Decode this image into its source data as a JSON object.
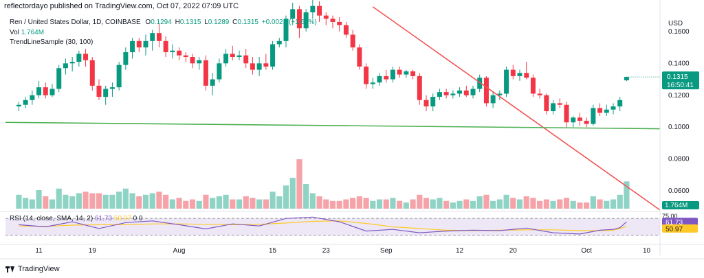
{
  "header": {
    "published": "reflectordayo published on TradingView.com, Oct 07, 2022 07:09 UTC"
  },
  "legend": {
    "symbol": "Ren / United States Dollar, 1D, COINBASE",
    "open_label": "O",
    "open": "0.1294",
    "high_label": "H",
    "high": "0.1315",
    "low_label": "L",
    "low": "0.1289",
    "close_label": "C",
    "close": "0.1315",
    "change": "+0.0021 (+1.62%)",
    "vol_label": "Vol",
    "vol": "1.764M",
    "indicator": "TrendLineSample (30, 100)"
  },
  "rsi": {
    "label": "RSI (14, close, SMA, 14, 2)",
    "rsi_value": "61.73",
    "sma_value": "50.97",
    "extra": "0 0",
    "axis_top": "75.00",
    "badge_rsi": "61.73",
    "badge_sma": "50.97"
  },
  "price_axis": {
    "currency": "USD",
    "ticks": [
      "0.1600",
      "0.1400",
      "0.1200",
      "0.1000",
      "0.0800",
      "0.0600"
    ],
    "last_price": "0.1315",
    "countdown": "16:50:41",
    "volume_badge": "1.764M"
  },
  "time_axis": {
    "ticks": [
      "11",
      "19",
      "Aug",
      "15",
      "23",
      "Sep",
      "12",
      "20",
      "Oct",
      "10"
    ]
  },
  "footer": {
    "brand": "TradingView"
  },
  "colors": {
    "up": "#089981",
    "down": "#f23645",
    "up_volume": "#8fd3c5",
    "down_volume": "#f5a3a8",
    "trendline_down": "#f25454",
    "support_line": "#4caf50",
    "rsi_line": "#7e57c2",
    "rsi_sma": "#ffca28",
    "rsi_band": "#ede7f6"
  },
  "chart_data": {
    "type": "candlestick",
    "symbol": "Ren / United States Dollar",
    "interval": "1D",
    "exchange": "COINBASE",
    "ylim": [
      0.048,
      0.172
    ],
    "x_range": [
      "2022-07-06",
      "2022-10-12"
    ],
    "candles": [
      {
        "d": "2022-07-08",
        "o": 0.113,
        "h": 0.116,
        "l": 0.11,
        "c": 0.114,
        "v": 0.9
      },
      {
        "d": "2022-07-09",
        "o": 0.114,
        "h": 0.119,
        "l": 0.112,
        "c": 0.117,
        "v": 0.7
      },
      {
        "d": "2022-07-10",
        "o": 0.117,
        "h": 0.123,
        "l": 0.114,
        "c": 0.12,
        "v": 0.6
      },
      {
        "d": "2022-07-11",
        "o": 0.12,
        "h": 0.129,
        "l": 0.118,
        "c": 0.125,
        "v": 1.2
      },
      {
        "d": "2022-07-12",
        "o": 0.125,
        "h": 0.128,
        "l": 0.118,
        "c": 0.12,
        "v": 0.8
      },
      {
        "d": "2022-07-13",
        "o": 0.12,
        "h": 0.127,
        "l": 0.119,
        "c": 0.124,
        "v": 0.6
      },
      {
        "d": "2022-07-14",
        "o": 0.124,
        "h": 0.139,
        "l": 0.122,
        "c": 0.137,
        "v": 1.3
      },
      {
        "d": "2022-07-15",
        "o": 0.137,
        "h": 0.143,
        "l": 0.133,
        "c": 0.14,
        "v": 0.9
      },
      {
        "d": "2022-07-16",
        "o": 0.14,
        "h": 0.144,
        "l": 0.135,
        "c": 0.141,
        "v": 0.8
      },
      {
        "d": "2022-07-17",
        "o": 0.141,
        "h": 0.148,
        "l": 0.138,
        "c": 0.146,
        "v": 1.0
      },
      {
        "d": "2022-07-18",
        "o": 0.146,
        "h": 0.149,
        "l": 0.138,
        "c": 0.142,
        "v": 1.1
      },
      {
        "d": "2022-07-19",
        "o": 0.142,
        "h": 0.144,
        "l": 0.123,
        "c": 0.126,
        "v": 1.0
      },
      {
        "d": "2022-07-20",
        "o": 0.126,
        "h": 0.13,
        "l": 0.117,
        "c": 0.119,
        "v": 1.0
      },
      {
        "d": "2022-07-21",
        "o": 0.119,
        "h": 0.126,
        "l": 0.114,
        "c": 0.124,
        "v": 0.9
      },
      {
        "d": "2022-07-22",
        "o": 0.124,
        "h": 0.128,
        "l": 0.119,
        "c": 0.125,
        "v": 0.9
      },
      {
        "d": "2022-07-23",
        "o": 0.125,
        "h": 0.141,
        "l": 0.123,
        "c": 0.139,
        "v": 1.1
      },
      {
        "d": "2022-07-24",
        "o": 0.139,
        "h": 0.15,
        "l": 0.136,
        "c": 0.147,
        "v": 1.3
      },
      {
        "d": "2022-07-25",
        "o": 0.147,
        "h": 0.156,
        "l": 0.143,
        "c": 0.154,
        "v": 1.0
      },
      {
        "d": "2022-07-26",
        "o": 0.154,
        "h": 0.156,
        "l": 0.147,
        "c": 0.15,
        "v": 0.8
      },
      {
        "d": "2022-07-27",
        "o": 0.15,
        "h": 0.158,
        "l": 0.145,
        "c": 0.154,
        "v": 0.9
      },
      {
        "d": "2022-07-28",
        "o": 0.154,
        "h": 0.161,
        "l": 0.148,
        "c": 0.159,
        "v": 1.0
      },
      {
        "d": "2022-07-29",
        "o": 0.159,
        "h": 0.165,
        "l": 0.15,
        "c": 0.154,
        "v": 1.1
      },
      {
        "d": "2022-07-30",
        "o": 0.154,
        "h": 0.157,
        "l": 0.144,
        "c": 0.147,
        "v": 0.9
      },
      {
        "d": "2022-07-31",
        "o": 0.147,
        "h": 0.152,
        "l": 0.143,
        "c": 0.148,
        "v": 0.6
      },
      {
        "d": "2022-08-01",
        "o": 0.148,
        "h": 0.15,
        "l": 0.142,
        "c": 0.145,
        "v": 0.7
      },
      {
        "d": "2022-08-02",
        "o": 0.145,
        "h": 0.147,
        "l": 0.141,
        "c": 0.144,
        "v": 0.5
      },
      {
        "d": "2022-08-03",
        "o": 0.144,
        "h": 0.146,
        "l": 0.137,
        "c": 0.14,
        "v": 0.6
      },
      {
        "d": "2022-08-04",
        "o": 0.14,
        "h": 0.144,
        "l": 0.136,
        "c": 0.142,
        "v": 0.5
      },
      {
        "d": "2022-08-05",
        "o": 0.142,
        "h": 0.145,
        "l": 0.123,
        "c": 0.126,
        "v": 0.9
      },
      {
        "d": "2022-08-06",
        "o": 0.126,
        "h": 0.134,
        "l": 0.12,
        "c": 0.13,
        "v": 0.7
      },
      {
        "d": "2022-08-07",
        "o": 0.13,
        "h": 0.143,
        "l": 0.128,
        "c": 0.14,
        "v": 0.8
      },
      {
        "d": "2022-08-08",
        "o": 0.14,
        "h": 0.149,
        "l": 0.138,
        "c": 0.146,
        "v": 0.9
      },
      {
        "d": "2022-08-09",
        "o": 0.146,
        "h": 0.151,
        "l": 0.142,
        "c": 0.144,
        "v": 0.6
      },
      {
        "d": "2022-08-10",
        "o": 0.144,
        "h": 0.148,
        "l": 0.142,
        "c": 0.145,
        "v": 0.6
      },
      {
        "d": "2022-08-11",
        "o": 0.145,
        "h": 0.149,
        "l": 0.137,
        "c": 0.14,
        "v": 0.8
      },
      {
        "d": "2022-08-12",
        "o": 0.14,
        "h": 0.144,
        "l": 0.133,
        "c": 0.136,
        "v": 0.7
      },
      {
        "d": "2022-08-13",
        "o": 0.136,
        "h": 0.144,
        "l": 0.132,
        "c": 0.14,
        "v": 0.6
      },
      {
        "d": "2022-08-14",
        "o": 0.14,
        "h": 0.146,
        "l": 0.136,
        "c": 0.138,
        "v": 0.6
      },
      {
        "d": "2022-08-15",
        "o": 0.138,
        "h": 0.154,
        "l": 0.136,
        "c": 0.152,
        "v": 1.1
      },
      {
        "d": "2022-08-16",
        "o": 0.152,
        "h": 0.156,
        "l": 0.15,
        "c": 0.154,
        "v": 0.8
      },
      {
        "d": "2022-08-17",
        "o": 0.154,
        "h": 0.17,
        "l": 0.15,
        "c": 0.168,
        "v": 1.5
      },
      {
        "d": "2022-08-18",
        "o": 0.168,
        "h": 0.178,
        "l": 0.164,
        "c": 0.174,
        "v": 2.0
      },
      {
        "d": "2022-08-19",
        "o": 0.174,
        "h": 0.176,
        "l": 0.156,
        "c": 0.162,
        "v": 3.2
      },
      {
        "d": "2022-08-20",
        "o": 0.162,
        "h": 0.174,
        "l": 0.16,
        "c": 0.172,
        "v": 1.6
      },
      {
        "d": "2022-08-21",
        "o": 0.172,
        "h": 0.18,
        "l": 0.168,
        "c": 0.176,
        "v": 1.0
      },
      {
        "d": "2022-08-22",
        "o": 0.176,
        "h": 0.179,
        "l": 0.166,
        "c": 0.17,
        "v": 0.8
      },
      {
        "d": "2022-08-23",
        "o": 0.17,
        "h": 0.172,
        "l": 0.164,
        "c": 0.168,
        "v": 0.6
      },
      {
        "d": "2022-08-24",
        "o": 0.168,
        "h": 0.17,
        "l": 0.162,
        "c": 0.166,
        "v": 0.5
      },
      {
        "d": "2022-08-25",
        "o": 0.166,
        "h": 0.169,
        "l": 0.16,
        "c": 0.164,
        "v": 0.5
      },
      {
        "d": "2022-08-26",
        "o": 0.164,
        "h": 0.166,
        "l": 0.156,
        "c": 0.158,
        "v": 0.6
      },
      {
        "d": "2022-08-27",
        "o": 0.158,
        "h": 0.161,
        "l": 0.148,
        "c": 0.15,
        "v": 0.7
      },
      {
        "d": "2022-08-28",
        "o": 0.15,
        "h": 0.152,
        "l": 0.136,
        "c": 0.138,
        "v": 0.8
      },
      {
        "d": "2022-08-29",
        "o": 0.138,
        "h": 0.14,
        "l": 0.124,
        "c": 0.127,
        "v": 0.7
      },
      {
        "d": "2022-08-30",
        "o": 0.127,
        "h": 0.131,
        "l": 0.124,
        "c": 0.128,
        "v": 0.5
      },
      {
        "d": "2022-08-31",
        "o": 0.128,
        "h": 0.134,
        "l": 0.126,
        "c": 0.132,
        "v": 0.6
      },
      {
        "d": "2022-09-01",
        "o": 0.132,
        "h": 0.136,
        "l": 0.128,
        "c": 0.13,
        "v": 0.6
      },
      {
        "d": "2022-09-02",
        "o": 0.13,
        "h": 0.138,
        "l": 0.128,
        "c": 0.136,
        "v": 0.7
      },
      {
        "d": "2022-09-03",
        "o": 0.136,
        "h": 0.138,
        "l": 0.131,
        "c": 0.133,
        "v": 0.5
      },
      {
        "d": "2022-09-04",
        "o": 0.133,
        "h": 0.136,
        "l": 0.131,
        "c": 0.135,
        "v": 0.4
      },
      {
        "d": "2022-09-05",
        "o": 0.135,
        "h": 0.136,
        "l": 0.13,
        "c": 0.132,
        "v": 0.6
      },
      {
        "d": "2022-09-06",
        "o": 0.132,
        "h": 0.134,
        "l": 0.114,
        "c": 0.117,
        "v": 0.9
      },
      {
        "d": "2022-09-07",
        "o": 0.117,
        "h": 0.12,
        "l": 0.11,
        "c": 0.113,
        "v": 0.7
      },
      {
        "d": "2022-09-08",
        "o": 0.113,
        "h": 0.121,
        "l": 0.11,
        "c": 0.119,
        "v": 0.6
      },
      {
        "d": "2022-09-09",
        "o": 0.119,
        "h": 0.124,
        "l": 0.117,
        "c": 0.122,
        "v": 0.7
      },
      {
        "d": "2022-09-10",
        "o": 0.122,
        "h": 0.124,
        "l": 0.118,
        "c": 0.12,
        "v": 0.5
      },
      {
        "d": "2022-09-11",
        "o": 0.12,
        "h": 0.123,
        "l": 0.118,
        "c": 0.121,
        "v": 0.4
      },
      {
        "d": "2022-09-12",
        "o": 0.121,
        "h": 0.125,
        "l": 0.119,
        "c": 0.123,
        "v": 0.5
      },
      {
        "d": "2022-09-13",
        "o": 0.123,
        "h": 0.126,
        "l": 0.119,
        "c": 0.12,
        "v": 0.6
      },
      {
        "d": "2022-09-14",
        "o": 0.12,
        "h": 0.126,
        "l": 0.118,
        "c": 0.124,
        "v": 0.5
      },
      {
        "d": "2022-09-15",
        "o": 0.124,
        "h": 0.133,
        "l": 0.122,
        "c": 0.131,
        "v": 0.8
      },
      {
        "d": "2022-09-16",
        "o": 0.131,
        "h": 0.132,
        "l": 0.113,
        "c": 0.115,
        "v": 0.9
      },
      {
        "d": "2022-09-17",
        "o": 0.115,
        "h": 0.122,
        "l": 0.112,
        "c": 0.12,
        "v": 0.5
      },
      {
        "d": "2022-09-18",
        "o": 0.12,
        "h": 0.123,
        "l": 0.117,
        "c": 0.121,
        "v": 0.6
      },
      {
        "d": "2022-09-19",
        "o": 0.121,
        "h": 0.138,
        "l": 0.119,
        "c": 0.136,
        "v": 0.9
      },
      {
        "d": "2022-09-20",
        "o": 0.136,
        "h": 0.139,
        "l": 0.13,
        "c": 0.132,
        "v": 0.7
      },
      {
        "d": "2022-09-21",
        "o": 0.132,
        "h": 0.136,
        "l": 0.129,
        "c": 0.134,
        "v": 0.6
      },
      {
        "d": "2022-09-22",
        "o": 0.134,
        "h": 0.141,
        "l": 0.13,
        "c": 0.131,
        "v": 0.8
      },
      {
        "d": "2022-09-23",
        "o": 0.131,
        "h": 0.133,
        "l": 0.119,
        "c": 0.121,
        "v": 0.7
      },
      {
        "d": "2022-09-24",
        "o": 0.121,
        "h": 0.124,
        "l": 0.118,
        "c": 0.12,
        "v": 0.5
      },
      {
        "d": "2022-09-25",
        "o": 0.12,
        "h": 0.121,
        "l": 0.108,
        "c": 0.11,
        "v": 0.6
      },
      {
        "d": "2022-09-26",
        "o": 0.11,
        "h": 0.117,
        "l": 0.108,
        "c": 0.115,
        "v": 0.5
      },
      {
        "d": "2022-09-27",
        "o": 0.115,
        "h": 0.118,
        "l": 0.112,
        "c": 0.114,
        "v": 0.6
      },
      {
        "d": "2022-09-28",
        "o": 0.114,
        "h": 0.116,
        "l": 0.1,
        "c": 0.103,
        "v": 0.7
      },
      {
        "d": "2022-09-29",
        "o": 0.103,
        "h": 0.107,
        "l": 0.1,
        "c": 0.106,
        "v": 0.5
      },
      {
        "d": "2022-09-30",
        "o": 0.106,
        "h": 0.109,
        "l": 0.101,
        "c": 0.104,
        "v": 0.4
      },
      {
        "d": "2022-10-01",
        "o": 0.104,
        "h": 0.106,
        "l": 0.1,
        "c": 0.102,
        "v": 0.4
      },
      {
        "d": "2022-10-02",
        "o": 0.102,
        "h": 0.114,
        "l": 0.101,
        "c": 0.112,
        "v": 0.8
      },
      {
        "d": "2022-10-03",
        "o": 0.112,
        "h": 0.115,
        "l": 0.107,
        "c": 0.109,
        "v": 0.6
      },
      {
        "d": "2022-10-04",
        "o": 0.109,
        "h": 0.114,
        "l": 0.107,
        "c": 0.111,
        "v": 0.5
      },
      {
        "d": "2022-10-05",
        "o": 0.111,
        "h": 0.115,
        "l": 0.108,
        "c": 0.113,
        "v": 0.6
      },
      {
        "d": "2022-10-06",
        "o": 0.113,
        "h": 0.119,
        "l": 0.11,
        "c": 0.117,
        "v": 0.9
      },
      {
        "d": "2022-10-07",
        "o": 0.1294,
        "h": 0.1315,
        "l": 0.1289,
        "c": 0.1315,
        "v": 1.764
      }
    ],
    "trendlines": [
      {
        "name": "descending",
        "points": [
          [
            "2022-08-30",
            0.1755
          ],
          [
            "2022-10-12",
            0.048
          ]
        ]
      },
      {
        "name": "support",
        "points": [
          [
            "2022-07-06",
            0.103
          ],
          [
            "2022-10-12",
            0.099
          ]
        ]
      }
    ],
    "rsi": {
      "ylim": [
        15,
        80
      ],
      "levels": [
        70,
        30
      ],
      "values": [
        {
          "d": "2022-07-08",
          "rsi": 55,
          "sma": 52
        },
        {
          "d": "2022-07-12",
          "rsi": 50,
          "sma": 51
        },
        {
          "d": "2022-07-16",
          "rsi": 62,
          "sma": 54
        },
        {
          "d": "2022-07-20",
          "rsi": 46,
          "sma": 55
        },
        {
          "d": "2022-07-24",
          "rsi": 60,
          "sma": 55
        },
        {
          "d": "2022-07-28",
          "rsi": 64,
          "sma": 57
        },
        {
          "d": "2022-08-01",
          "rsi": 55,
          "sma": 57
        },
        {
          "d": "2022-08-05",
          "rsi": 45,
          "sma": 56
        },
        {
          "d": "2022-08-09",
          "rsi": 57,
          "sma": 55
        },
        {
          "d": "2022-08-13",
          "rsi": 52,
          "sma": 56
        },
        {
          "d": "2022-08-17",
          "rsi": 70,
          "sma": 59
        },
        {
          "d": "2022-08-21",
          "rsi": 73,
          "sma": 63
        },
        {
          "d": "2022-08-25",
          "rsi": 62,
          "sma": 64
        },
        {
          "d": "2022-08-29",
          "rsi": 40,
          "sma": 58
        },
        {
          "d": "2022-09-02",
          "rsi": 44,
          "sma": 50
        },
        {
          "d": "2022-09-06",
          "rsi": 36,
          "sma": 46
        },
        {
          "d": "2022-09-10",
          "rsi": 40,
          "sma": 42
        },
        {
          "d": "2022-09-14",
          "rsi": 42,
          "sma": 41
        },
        {
          "d": "2022-09-18",
          "rsi": 41,
          "sma": 42
        },
        {
          "d": "2022-09-22",
          "rsi": 47,
          "sma": 43
        },
        {
          "d": "2022-09-26",
          "rsi": 36,
          "sma": 43
        },
        {
          "d": "2022-09-30",
          "rsi": 33,
          "sma": 41
        },
        {
          "d": "2022-10-03",
          "rsi": 42,
          "sma": 41
        },
        {
          "d": "2022-10-05",
          "rsi": 44,
          "sma": 42
        },
        {
          "d": "2022-10-06",
          "rsi": 48,
          "sma": 46
        },
        {
          "d": "2022-10-07",
          "rsi": 61.73,
          "sma": 50.97
        }
      ]
    }
  }
}
